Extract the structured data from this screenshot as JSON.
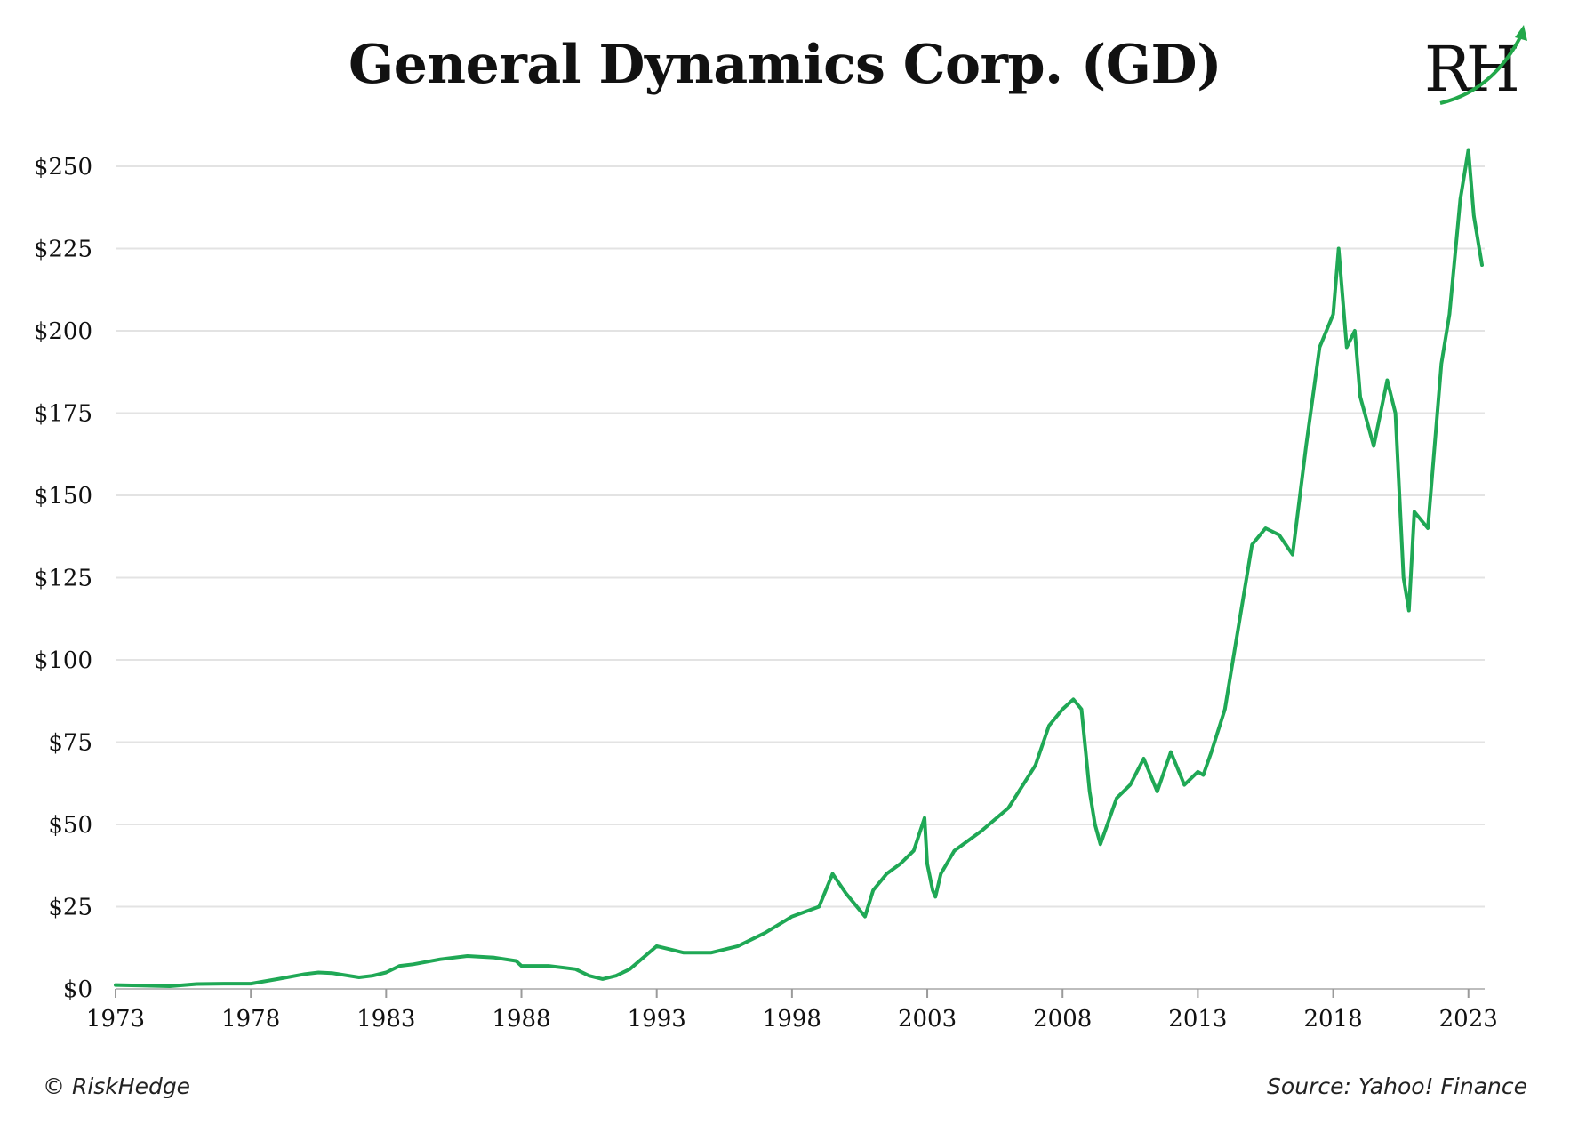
{
  "logo": {
    "text": "RH",
    "accent_color": "#22a84a"
  },
  "footer": {
    "copyright": "© RiskHedge",
    "source": "Source: Yahoo! Finance"
  },
  "chart_data": {
    "type": "line",
    "title": "General Dynamics Corp. (GD)",
    "xlabel": "",
    "ylabel": "",
    "xlim": [
      1973,
      2023.6
    ],
    "ylim": [
      0,
      260
    ],
    "grid": "horizontal",
    "line_color": "#1fa855",
    "x_ticks": [
      1973,
      1978,
      1983,
      1988,
      1993,
      1998,
      2003,
      2008,
      2013,
      2018,
      2023
    ],
    "x_tick_labels": [
      "1973",
      "1978",
      "1983",
      "1988",
      "1993",
      "1998",
      "2003",
      "2008",
      "2013",
      "2018",
      "2023"
    ],
    "y_ticks": [
      0,
      25,
      50,
      75,
      100,
      125,
      150,
      175,
      200,
      225,
      250
    ],
    "y_tick_labels": [
      "$0",
      "$25",
      "$50",
      "$75",
      "$100",
      "$125",
      "$150",
      "$175",
      "$200",
      "$225",
      "$250"
    ],
    "series": [
      {
        "x": [
          1973.0,
          1974.0,
          1975.0,
          1976.0,
          1977.0,
          1978.0,
          1979.0,
          1980.0,
          1980.5,
          1981.0,
          1982.0,
          1982.5,
          1983.0,
          1983.5,
          1984.0,
          1985.0,
          1986.0,
          1987.0,
          1987.8,
          1988.0,
          1989.0,
          1990.0,
          1990.5,
          1991.0,
          1991.5,
          1992.0,
          1993.0,
          1993.5,
          1994.0,
          1995.0,
          1996.0,
          1997.0,
          1998.0,
          1999.0,
          1999.5,
          2000.0,
          2000.7,
          2001.0,
          2001.5,
          2002.0,
          2002.5,
          2002.9,
          2003.0,
          2003.2,
          2003.3,
          2003.5,
          2004.0,
          2005.0,
          2006.0,
          2007.0,
          2007.5,
          2008.0,
          2008.4,
          2008.7,
          2009.0,
          2009.2,
          2009.4,
          2010.0,
          2010.5,
          2011.0,
          2011.5,
          2012.0,
          2012.5,
          2013.0,
          2013.2,
          2013.5,
          2014.0,
          2014.5,
          2015.0,
          2015.5,
          2016.0,
          2016.5,
          2017.0,
          2017.5,
          2018.0,
          2018.2,
          2018.5,
          2018.8,
          2019.0,
          2019.5,
          2020.0,
          2020.3,
          2020.6,
          2020.8,
          2021.0,
          2021.5,
          2022.0,
          2022.3,
          2022.7,
          2023.0,
          2023.2,
          2023.4,
          2023.5
        ],
        "y": [
          1.2,
          1.0,
          0.8,
          1.5,
          1.6,
          1.6,
          3.0,
          4.5,
          5.0,
          4.8,
          3.5,
          4.0,
          5.0,
          7.0,
          7.5,
          9.0,
          10.0,
          9.5,
          8.5,
          7.0,
          7.0,
          6.0,
          4.0,
          3.0,
          4.0,
          6.0,
          13.0,
          12.0,
          11.0,
          11.0,
          13.0,
          17.0,
          22.0,
          25.0,
          35.0,
          29.0,
          22.0,
          30.0,
          35.0,
          38.0,
          42.0,
          52.0,
          38.0,
          30.0,
          28.0,
          35.0,
          42.0,
          48.0,
          55.0,
          68.0,
          80.0,
          85.0,
          88.0,
          85.0,
          60.0,
          50.0,
          44.0,
          58.0,
          62.0,
          70.0,
          60.0,
          72.0,
          62.0,
          66.0,
          65.0,
          72.0,
          85.0,
          110.0,
          135.0,
          140.0,
          138.0,
          132.0,
          165.0,
          195.0,
          205.0,
          225.0,
          195.0,
          200.0,
          180.0,
          165.0,
          185.0,
          175.0,
          125.0,
          115.0,
          145.0,
          140.0,
          190.0,
          205.0,
          240.0,
          255.0,
          235.0,
          225.0,
          220.0
        ]
      }
    ]
  }
}
